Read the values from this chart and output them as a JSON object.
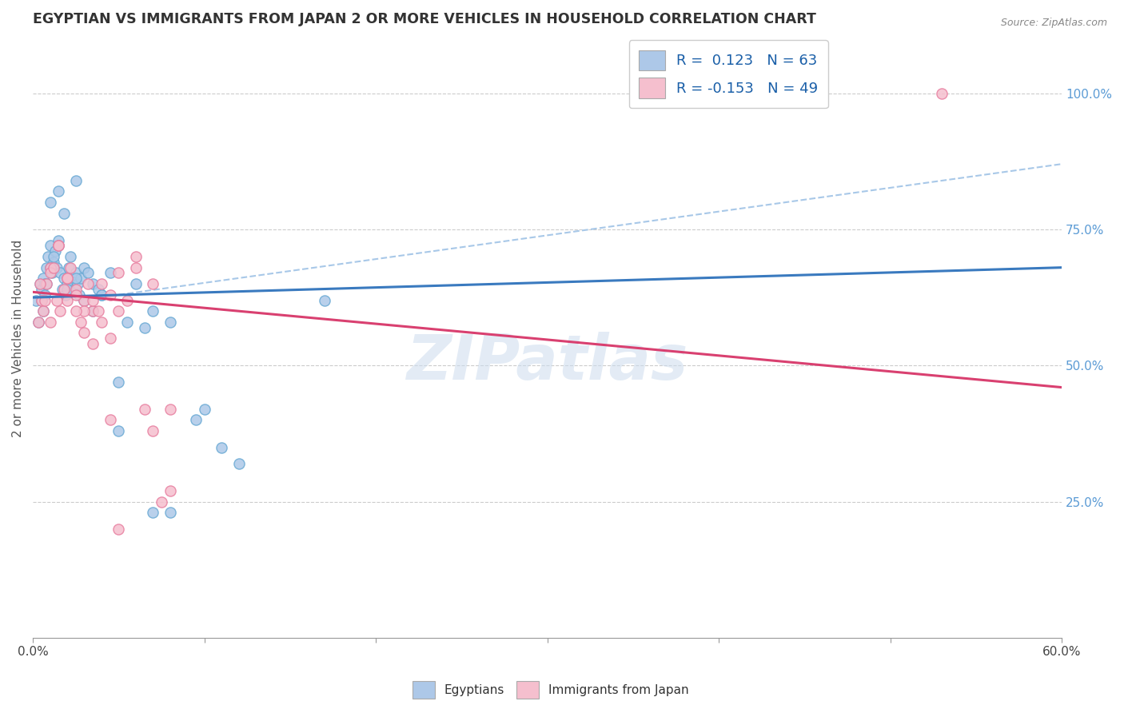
{
  "title": "EGYPTIAN VS IMMIGRANTS FROM JAPAN 2 OR MORE VEHICLES IN HOUSEHOLD CORRELATION CHART",
  "source": "Source: ZipAtlas.com",
  "ylabel": "2 or more Vehicles in Household",
  "right_yticklabels": [
    "25.0%",
    "50.0%",
    "75.0%",
    "100.0%"
  ],
  "right_ytick_vals": [
    25,
    50,
    75,
    100
  ],
  "legend_r1": "R =  0.123   N = 63",
  "legend_r2": "R = -0.153   N = 49",
  "blue_color": "#adc8e8",
  "pink_color": "#f5bfce",
  "blue_edge_color": "#6aaad4",
  "pink_edge_color": "#e87fa0",
  "blue_line_color": "#3a7abf",
  "pink_line_color": "#d94070",
  "dashed_line_color": "#a8c8e8",
  "watermark": "ZIPatlas",
  "blue_scatter_x": [
    1.5,
    2.5,
    1.0,
    1.8,
    0.2,
    0.4,
    0.5,
    0.6,
    0.7,
    0.8,
    0.9,
    1.0,
    1.1,
    1.2,
    1.3,
    1.4,
    1.5,
    1.6,
    1.7,
    1.8,
    1.9,
    2.0,
    2.1,
    2.2,
    2.3,
    2.4,
    2.5,
    2.6,
    2.7,
    2.8,
    3.0,
    3.2,
    3.5,
    3.8,
    4.0,
    4.5,
    5.0,
    5.5,
    6.0,
    6.5,
    7.0,
    8.0,
    9.5,
    10.0,
    11.0,
    12.0,
    0.3,
    0.5,
    0.6,
    0.7,
    0.8,
    1.0,
    1.2,
    1.5,
    2.0,
    2.5,
    3.0,
    3.5,
    4.0,
    5.0,
    7.0,
    8.0,
    17.0
  ],
  "blue_scatter_y": [
    82,
    84,
    80,
    78,
    62,
    65,
    64,
    66,
    65,
    68,
    70,
    72,
    67,
    69,
    71,
    68,
    73,
    67,
    64,
    66,
    63,
    65,
    68,
    70,
    66,
    64,
    67,
    65,
    63,
    66,
    68,
    67,
    65,
    64,
    63,
    67,
    47,
    58,
    65,
    57,
    60,
    58,
    40,
    42,
    35,
    32,
    58,
    62,
    60,
    63,
    65,
    68,
    70,
    72,
    64,
    66,
    62,
    60,
    63,
    38,
    23,
    23,
    62
  ],
  "pink_scatter_x": [
    53.0,
    0.5,
    1.0,
    1.5,
    2.0,
    2.5,
    3.0,
    3.5,
    4.0,
    4.5,
    5.0,
    6.0,
    7.0,
    8.0,
    0.3,
    0.6,
    0.8,
    1.0,
    1.2,
    1.4,
    1.6,
    1.8,
    2.0,
    2.2,
    2.5,
    2.8,
    3.0,
    3.2,
    3.5,
    3.8,
    4.0,
    4.5,
    5.0,
    5.5,
    6.0,
    6.5,
    7.0,
    8.0,
    0.4,
    0.7,
    1.0,
    1.5,
    2.0,
    2.5,
    3.0,
    3.5,
    4.5,
    5.0,
    7.5
  ],
  "pink_scatter_y": [
    100,
    62,
    68,
    72,
    66,
    64,
    62,
    60,
    65,
    63,
    67,
    70,
    65,
    42,
    58,
    60,
    65,
    67,
    68,
    62,
    60,
    64,
    66,
    68,
    63,
    58,
    60,
    65,
    62,
    60,
    58,
    55,
    60,
    62,
    68,
    42,
    38,
    27,
    65,
    62,
    58,
    72,
    62,
    60,
    56,
    54,
    40,
    20,
    25
  ],
  "xlim": [
    0,
    60
  ],
  "ylim": [
    0,
    110
  ],
  "xtick_positions": [
    0,
    10,
    20,
    30,
    40,
    50,
    60
  ],
  "xticklabels_show": [
    "0.0%",
    "",
    "",
    "",
    "",
    "",
    "60.0%"
  ],
  "blue_trend": [
    0,
    60,
    62.5,
    68.0
  ],
  "pink_trend": [
    0,
    60,
    63.5,
    46.0
  ],
  "dashed_trend": [
    5,
    60,
    63.0,
    87.0
  ]
}
